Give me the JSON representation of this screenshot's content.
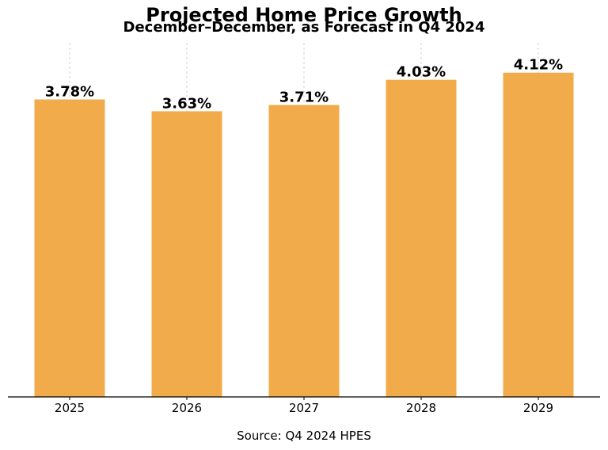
{
  "chart_data": {
    "type": "bar",
    "title": "Projected Home Price Growth",
    "subtitle": "December–December, as Forecast in Q4 2024",
    "source": "Source: Q4 2024 HPES",
    "categories": [
      "2025",
      "2026",
      "2027",
      "2028",
      "2029"
    ],
    "values": [
      3.78,
      3.63,
      3.71,
      4.03,
      4.12
    ],
    "value_labels": [
      "3.78%",
      "3.63%",
      "3.71%",
      "4.03%",
      "4.12%"
    ],
    "xlabel": "",
    "ylabel": "",
    "ylim": [
      0,
      4.5
    ],
    "grid": "vertical",
    "legend": "none",
    "bar_color": "#F2AB4A",
    "axis_color": "#000000",
    "grid_color": "#c8c8c8"
  }
}
